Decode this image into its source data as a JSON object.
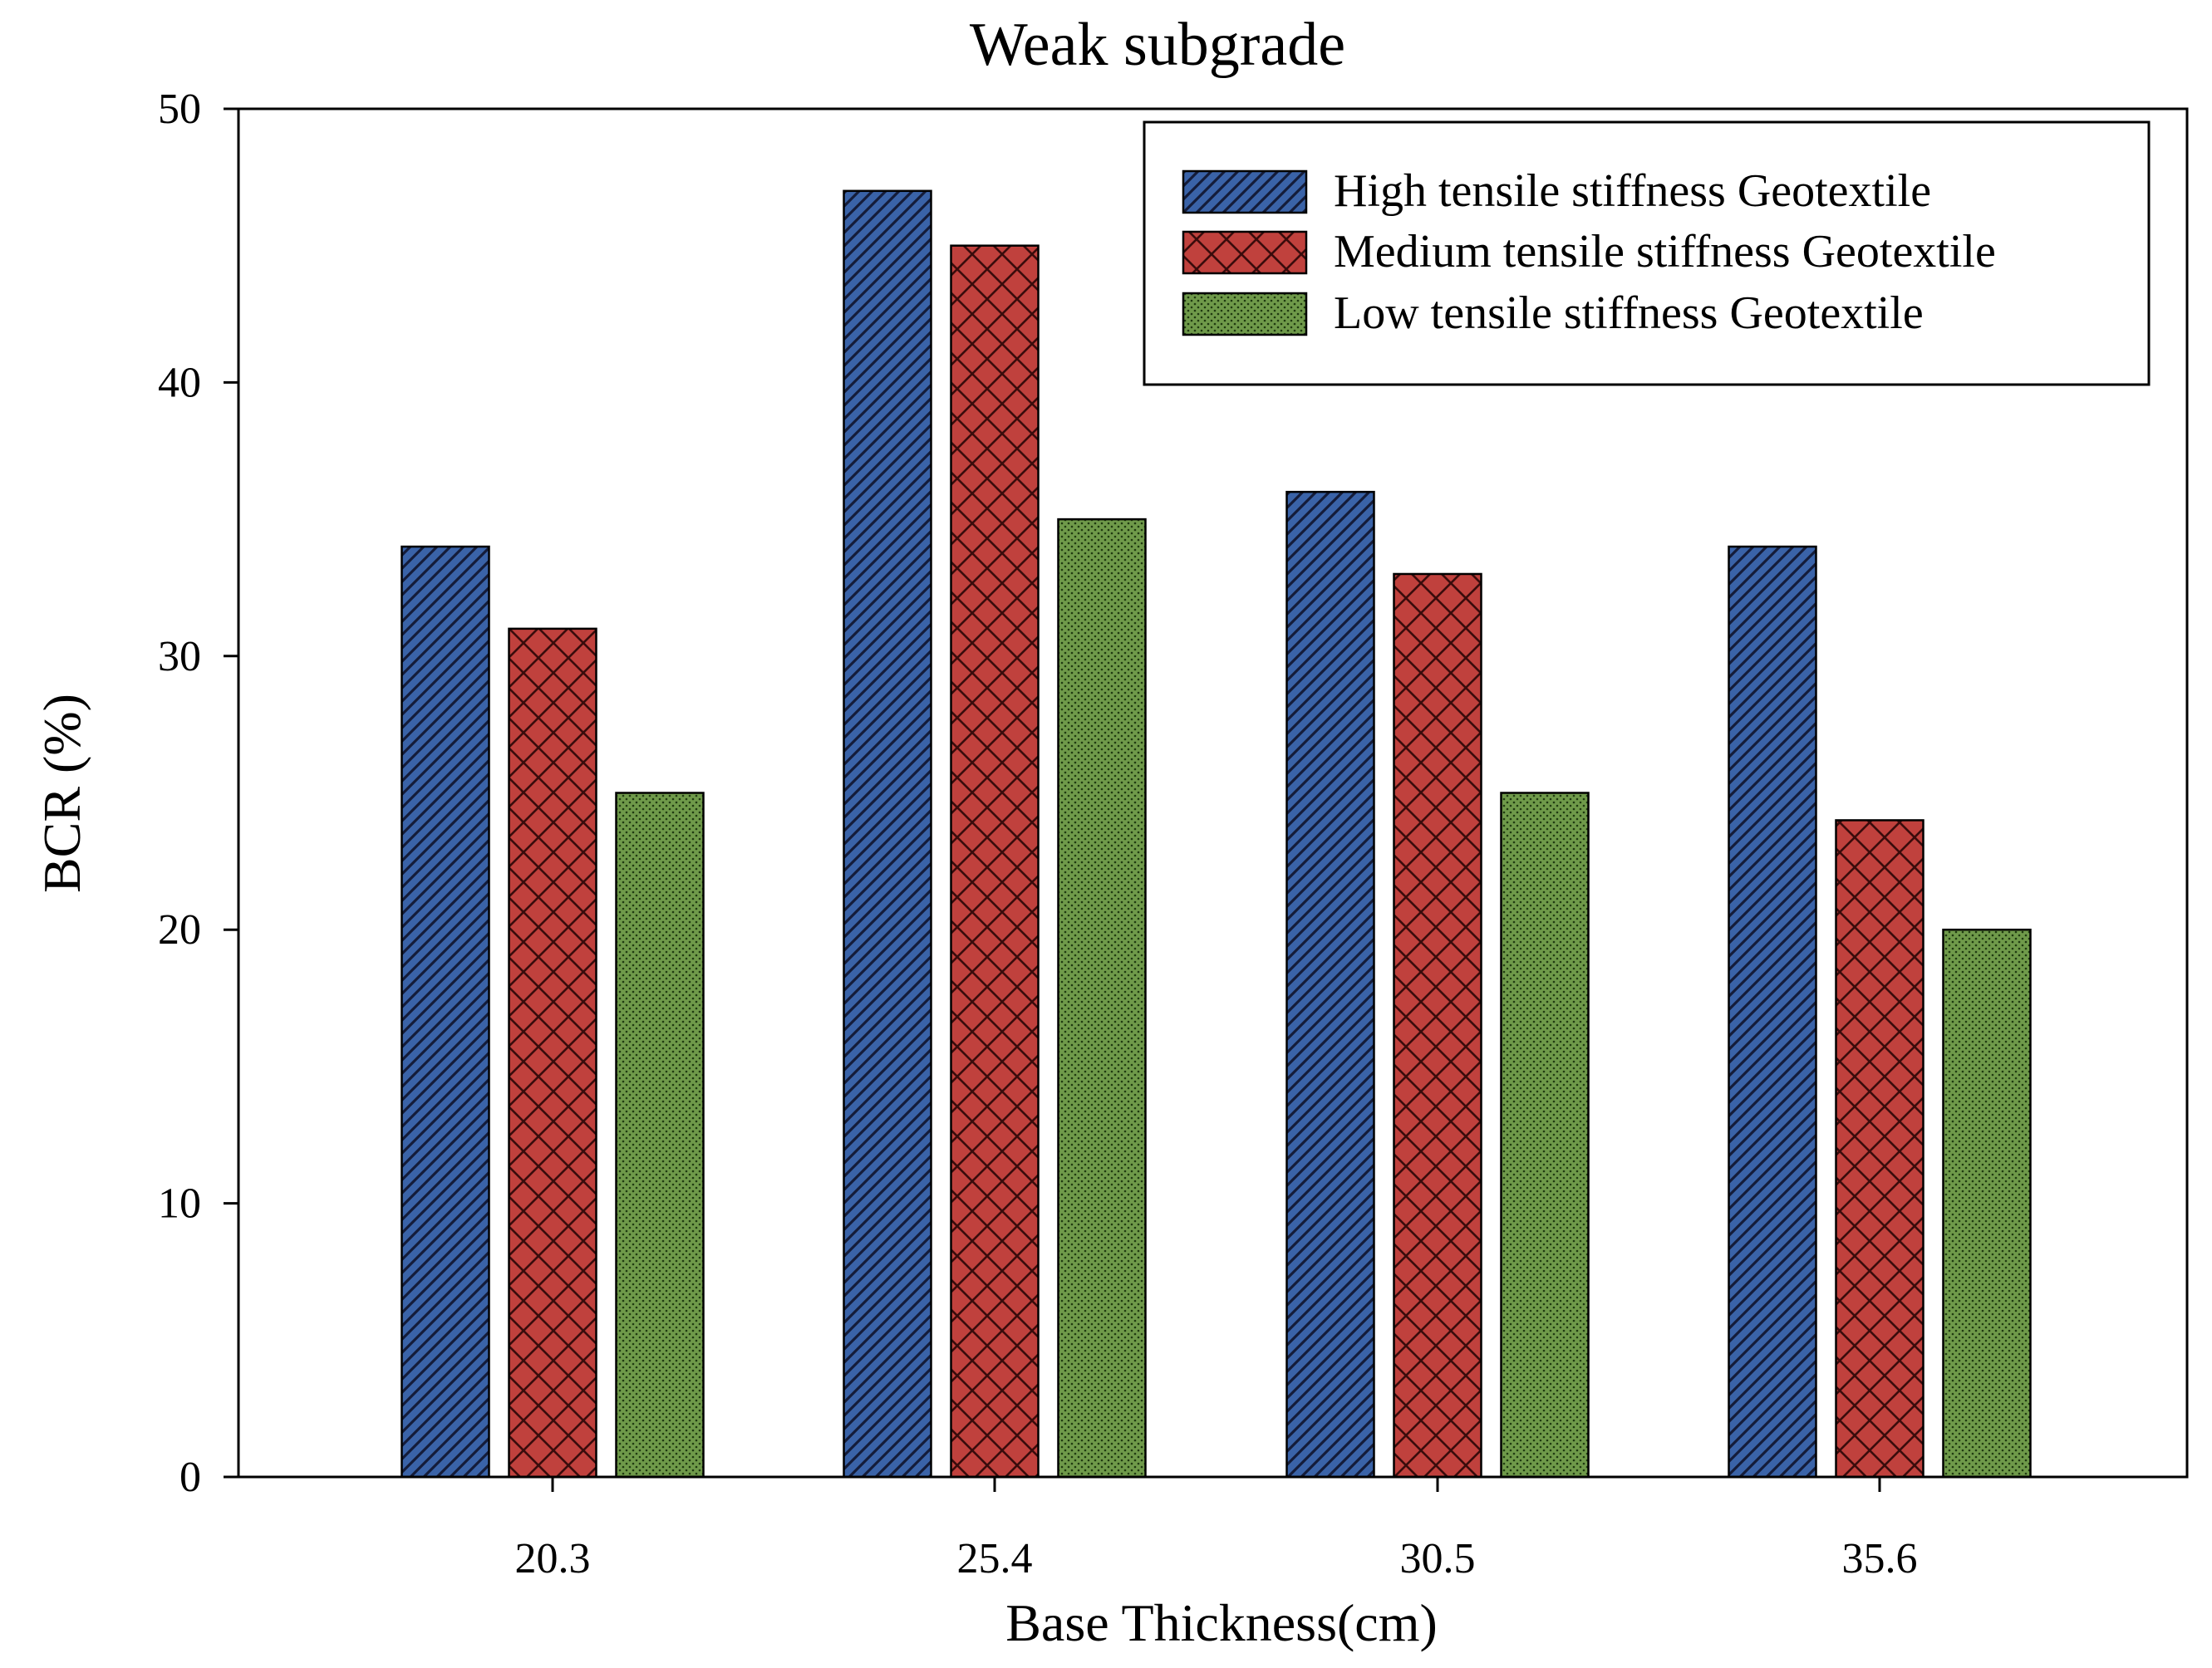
{
  "chart_data": {
    "type": "bar",
    "title": "Weak subgrade",
    "xlabel": "Base Thickness(cm)",
    "ylabel": "BCR (%)",
    "ylim": [
      0,
      50
    ],
    "yticks": [
      "0",
      "10",
      "20",
      "30",
      "40",
      "50"
    ],
    "categories": [
      "20.3",
      "25.4",
      "30.5",
      "35.6"
    ],
    "series": [
      {
        "name": "High tensile stiffness Geotextile",
        "values": [
          34,
          47,
          36,
          34
        ],
        "color": "#3a63a8",
        "pattern": "diagonal-hatch"
      },
      {
        "name": "Medium tensile stiffness Geotextile",
        "values": [
          31,
          45,
          33,
          24
        ],
        "color": "#c0413d",
        "pattern": "crosshatch"
      },
      {
        "name": "Low tensile stiffness Geotextile",
        "values": [
          25,
          35,
          25,
          20
        ],
        "color": "#6f9a4a",
        "pattern": "dots"
      }
    ],
    "legend": "top-right",
    "grid": false
  }
}
